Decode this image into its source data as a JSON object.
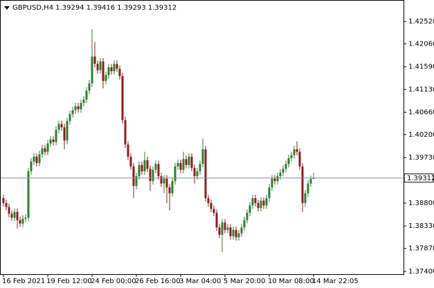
{
  "chart_data": {
    "type": "candlestick",
    "title": "GBPUSD,H4  1.39294 1.39416 1.39293 1.39312",
    "bull_color": "#2f7d2f",
    "bear_color": "#8b1c1c",
    "ylim": [
      1.37343,
      1.42916
    ],
    "yticks": [
      {
        "value": 1.4252,
        "label": "1.42520"
      },
      {
        "value": 1.4206,
        "label": "1.42060"
      },
      {
        "value": 1.4159,
        "label": "1.41590"
      },
      {
        "value": 1.4113,
        "label": "1.41130"
      },
      {
        "value": 1.4066,
        "label": "1.40660"
      },
      {
        "value": 1.402,
        "label": "1.40200"
      },
      {
        "value": 1.3973,
        "label": "1.39730"
      },
      {
        "value": 1.388,
        "label": "1.38800"
      },
      {
        "value": 1.3833,
        "label": "1.38330"
      },
      {
        "value": 1.3787,
        "label": "1.37870"
      },
      {
        "value": 1.374,
        "label": "1.37400"
      }
    ],
    "price_line": {
      "value": 1.39312,
      "label": "1.39312"
    },
    "categories": [
      "16 Feb 2021",
      null,
      null,
      null,
      null,
      null,
      null,
      null,
      null,
      null,
      null,
      null,
      null,
      null,
      null,
      null,
      "19 Feb 12:00",
      null,
      null,
      null,
      null,
      null,
      null,
      null,
      null,
      null,
      null,
      null,
      null,
      null,
      null,
      null,
      "24 Feb 00:00",
      null,
      null,
      null,
      null,
      null,
      null,
      null,
      null,
      null,
      null,
      null,
      null,
      null,
      null,
      null,
      "26 Feb 16:00",
      null,
      null,
      null,
      null,
      null,
      null,
      null,
      null,
      null,
      null,
      null,
      null,
      null,
      null,
      null,
      "3 Mar 04:00",
      null,
      null,
      null,
      null,
      null,
      null,
      null,
      null,
      null,
      null,
      null,
      null,
      null,
      null,
      null,
      "5 Mar 20:00",
      null,
      null,
      null,
      null,
      null,
      null,
      null,
      null,
      null,
      null,
      null,
      null,
      null,
      null,
      null,
      "10 Mar 08:00",
      null,
      null,
      null,
      null,
      null,
      null,
      null,
      null,
      null,
      null,
      null,
      null,
      null,
      null,
      null,
      "14 Mar 22:05"
    ],
    "open": [
      1.389,
      1.388,
      1.3872,
      1.3858,
      1.385,
      1.3862,
      1.3845,
      1.3838,
      1.3848,
      1.385,
      1.3945,
      1.3965,
      1.3975,
      1.3962,
      1.398,
      1.3992,
      1.3985,
      1.4002,
      1.401,
      1.4005,
      1.403,
      1.4042,
      1.4035,
      1.4008,
      1.4048,
      1.4062,
      1.407,
      1.4078,
      1.4072,
      1.4085,
      1.4092,
      1.411,
      1.4125,
      1.418,
      1.4165,
      1.4152,
      1.417,
      1.413,
      1.4142,
      1.4158,
      1.415,
      1.4165,
      1.4155,
      1.414,
      1.405,
      1.4,
      1.3975,
      1.3955,
      1.3915,
      1.3935,
      1.3958,
      1.3945,
      1.3968,
      1.395,
      1.3925,
      1.3948,
      1.396,
      1.3935,
      1.392,
      1.393,
      1.3912,
      1.39,
      1.3925,
      1.3955,
      1.3962,
      1.3948,
      1.397,
      1.3958,
      1.3975,
      1.3952,
      1.3935,
      1.3945,
      1.396,
      1.399,
      1.389,
      1.388,
      1.3868,
      1.386,
      1.383,
      1.3815,
      1.384,
      1.3825,
      1.383,
      1.3812,
      1.3825,
      1.381,
      1.3818,
      1.383,
      1.3845,
      1.386,
      1.3875,
      1.389,
      1.388,
      1.387,
      1.3885,
      1.3875,
      1.389,
      1.3912,
      1.393,
      1.3925,
      1.3935,
      1.3942,
      1.395,
      1.396,
      1.3972,
      1.3978,
      1.399,
      1.3985,
      1.3955,
      1.388,
      1.39,
      1.392,
      1.39294
    ],
    "high": [
      1.3897,
      1.3887,
      1.3879,
      1.3865,
      1.3869,
      1.3869,
      1.3852,
      1.3855,
      1.3857,
      1.3952,
      1.3972,
      1.3982,
      1.3982,
      1.3987,
      1.3999,
      1.3999,
      1.4009,
      1.4017,
      1.4017,
      1.4037,
      1.4049,
      1.4049,
      1.4042,
      1.4055,
      1.4069,
      1.4077,
      1.4085,
      1.4085,
      1.4092,
      1.4099,
      1.4117,
      1.4132,
      1.4236,
      1.421,
      1.4172,
      1.4177,
      1.4177,
      1.4149,
      1.4165,
      1.4165,
      1.4172,
      1.4172,
      1.4162,
      1.4147,
      1.4057,
      1.4007,
      1.3982,
      1.3962,
      1.3942,
      1.3965,
      1.3965,
      1.3985,
      1.3975,
      1.3957,
      1.3955,
      1.3967,
      1.3967,
      1.3942,
      1.3937,
      1.3937,
      1.3919,
      1.3932,
      1.3962,
      1.3969,
      1.3969,
      1.3985,
      1.3977,
      1.3982,
      1.3982,
      1.3959,
      1.3952,
      1.3967,
      1.4012,
      1.3997,
      1.3897,
      1.3887,
      1.3875,
      1.3867,
      1.3837,
      1.3847,
      1.3847,
      1.3837,
      1.3837,
      1.3832,
      1.3832,
      1.3825,
      1.3837,
      1.3852,
      1.3867,
      1.3882,
      1.3897,
      1.3897,
      1.3887,
      1.3892,
      1.3892,
      1.3897,
      1.3919,
      1.3937,
      1.3937,
      1.3942,
      1.3949,
      1.3957,
      1.3967,
      1.3979,
      1.3985,
      1.3997,
      1.4006,
      1.3992,
      1.3962,
      1.3907,
      1.3927,
      1.3936,
      1.39416
    ],
    "low": [
      1.3873,
      1.3865,
      1.3851,
      1.3843,
      1.3843,
      1.3828,
      1.3831,
      1.3831,
      1.3841,
      1.3843,
      1.3938,
      1.3958,
      1.3955,
      1.3955,
      1.3973,
      1.3978,
      1.3978,
      1.3995,
      1.3998,
      1.3998,
      1.4023,
      1.4028,
      1.399,
      1.4001,
      1.4041,
      1.4055,
      1.4063,
      1.4065,
      1.4065,
      1.4078,
      1.4085,
      1.4103,
      1.4118,
      1.4158,
      1.4145,
      1.4145,
      1.4115,
      1.4123,
      1.4135,
      1.4143,
      1.4143,
      1.4148,
      1.4133,
      1.4043,
      1.3993,
      1.3968,
      1.3948,
      1.389,
      1.3908,
      1.3928,
      1.3938,
      1.3938,
      1.3943,
      1.3905,
      1.3918,
      1.3941,
      1.3928,
      1.3913,
      1.39,
      1.388,
      1.3865,
      1.3893,
      1.3918,
      1.3948,
      1.3941,
      1.3941,
      1.3951,
      1.3951,
      1.3945,
      1.392,
      1.3928,
      1.3938,
      1.3953,
      1.3883,
      1.3873,
      1.3861,
      1.3853,
      1.3823,
      1.3808,
      1.378,
      1.3818,
      1.3818,
      1.3805,
      1.3805,
      1.3803,
      1.3803,
      1.3811,
      1.3823,
      1.3838,
      1.3853,
      1.3868,
      1.3873,
      1.3863,
      1.3863,
      1.3868,
      1.3868,
      1.3883,
      1.3905,
      1.3918,
      1.3918,
      1.3928,
      1.3935,
      1.3943,
      1.3953,
      1.3965,
      1.3971,
      1.3978,
      1.3948,
      1.3862,
      1.3873,
      1.3893,
      1.3913,
      1.39293
    ],
    "close": [
      1.388,
      1.3872,
      1.3858,
      1.385,
      1.3862,
      1.3845,
      1.3838,
      1.3848,
      1.385,
      1.3945,
      1.3965,
      1.3975,
      1.3962,
      1.398,
      1.3992,
      1.3985,
      1.4002,
      1.401,
      1.4005,
      1.403,
      1.4042,
      1.4035,
      1.4008,
      1.4048,
      1.4062,
      1.407,
      1.4078,
      1.4072,
      1.4085,
      1.4092,
      1.411,
      1.4125,
      1.418,
      1.4165,
      1.4152,
      1.417,
      1.413,
      1.4142,
      1.4158,
      1.415,
      1.4165,
      1.4155,
      1.414,
      1.405,
      1.4,
      1.3975,
      1.3955,
      1.3915,
      1.3935,
      1.3958,
      1.3945,
      1.3968,
      1.395,
      1.3925,
      1.3948,
      1.396,
      1.3935,
      1.392,
      1.393,
      1.3912,
      1.39,
      1.3925,
      1.3955,
      1.3962,
      1.3948,
      1.397,
      1.3958,
      1.3975,
      1.3952,
      1.3935,
      1.3945,
      1.396,
      1.399,
      1.389,
      1.388,
      1.3868,
      1.386,
      1.383,
      1.3815,
      1.384,
      1.3825,
      1.383,
      1.3812,
      1.3825,
      1.381,
      1.3818,
      1.383,
      1.3845,
      1.386,
      1.3875,
      1.389,
      1.388,
      1.387,
      1.3885,
      1.3875,
      1.389,
      1.3912,
      1.393,
      1.3925,
      1.3935,
      1.3942,
      1.395,
      1.396,
      1.3972,
      1.3978,
      1.399,
      1.3985,
      1.3955,
      1.388,
      1.39,
      1.392,
      1.39294,
      1.39312
    ]
  }
}
